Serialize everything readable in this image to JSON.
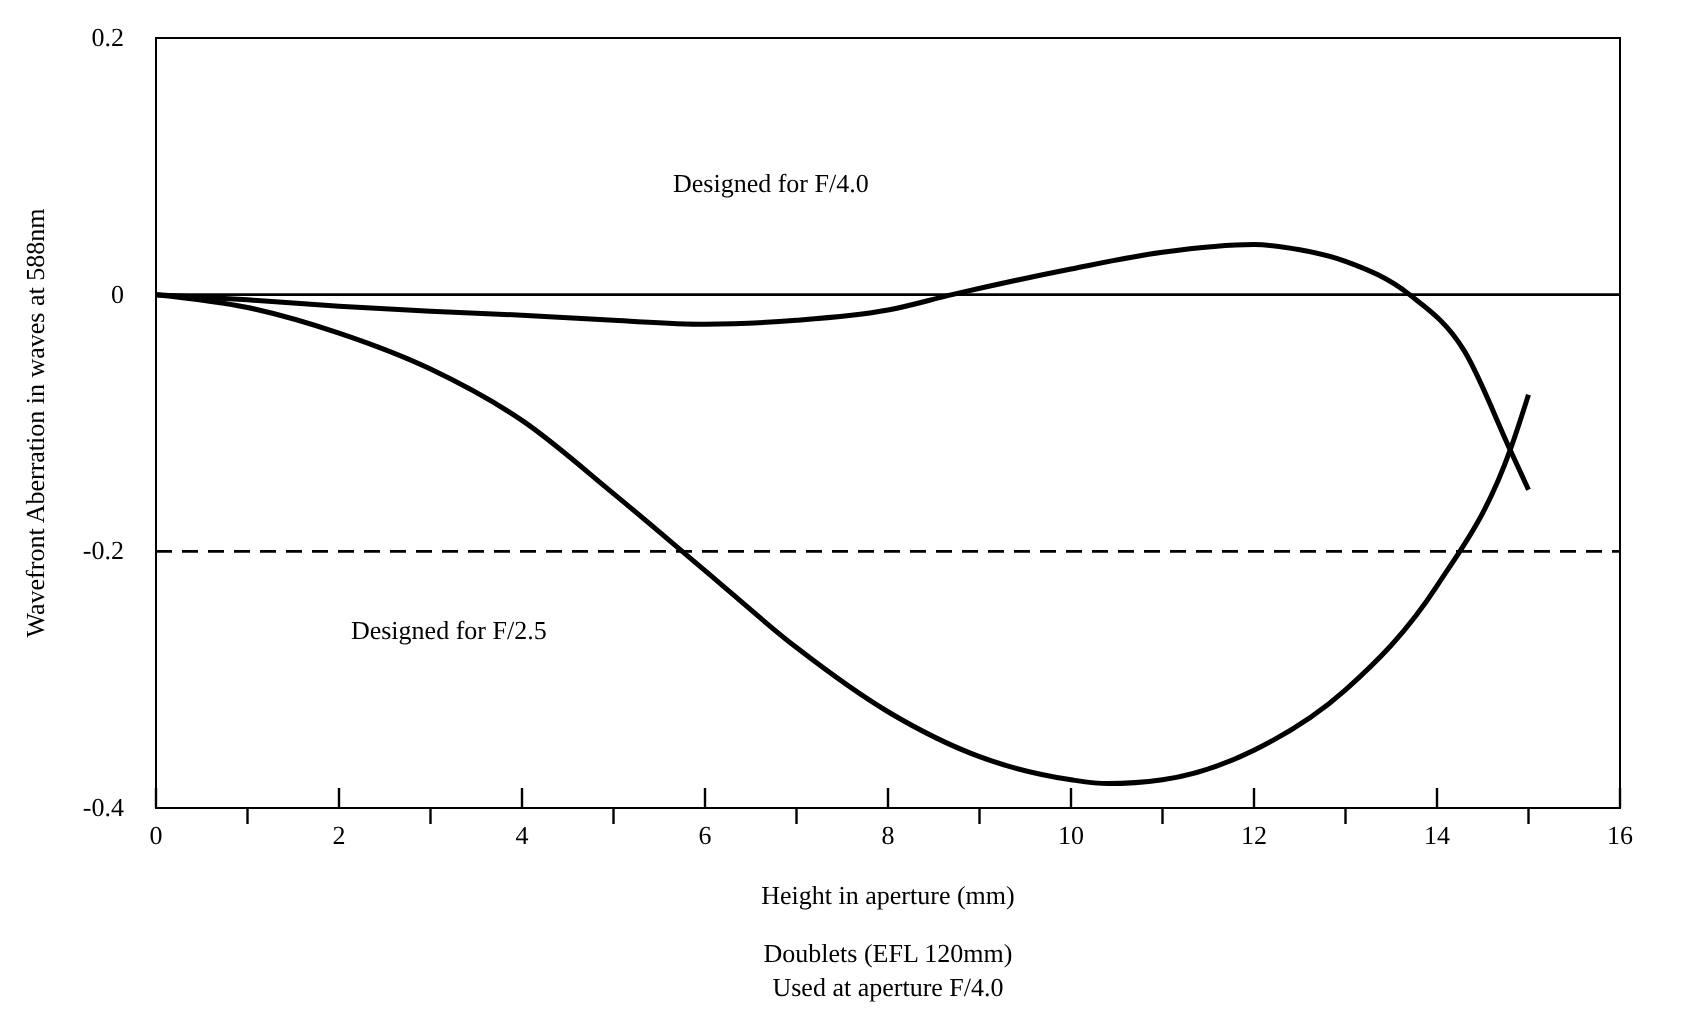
{
  "chart_data": {
    "type": "line",
    "xlabel": "Height in aperture (mm)",
    "ylabel": "Wavefront Aberration in waves at 588nm",
    "xlim": [
      0,
      16
    ],
    "ylim": [
      -0.4,
      0.2
    ],
    "xticks": [
      0,
      {
        "value": 1,
        "label": null
      },
      2,
      {
        "value": 3,
        "label": null
      },
      4,
      {
        "value": 5,
        "label": null
      },
      6,
      {
        "value": 7,
        "label": null
      },
      8,
      {
        "value": 9,
        "label": null
      },
      10,
      {
        "value": 11,
        "label": null
      },
      12,
      {
        "value": 13,
        "label": null
      },
      14,
      {
        "value": 15,
        "label": null
      },
      16
    ],
    "yticks": [
      -0.4,
      -0.2,
      0,
      0.2
    ],
    "grid": false,
    "marker": "none",
    "line_style": "solid",
    "series": [
      {
        "color": "#000000",
        "x": [
          0,
          1,
          2,
          3,
          4,
          5,
          6,
          7,
          8,
          8.7,
          10,
          11,
          12,
          12.5,
          13,
          13.7,
          14.3,
          14.8,
          15
        ],
        "values": [
          0,
          -0.004,
          -0.009,
          -0.013,
          -0.016,
          -0.02,
          -0.023,
          -0.02,
          -0.012,
          0,
          0.02,
          0.033,
          0.039,
          0.035,
          0.026,
          0,
          -0.044,
          -0.121,
          -0.152
        ]
      },
      {
        "color": "#000000",
        "x": [
          0,
          1,
          2,
          3,
          4,
          5,
          6,
          7,
          8,
          9,
          10,
          10.4,
          11,
          12,
          13,
          14,
          14.8,
          15
        ],
        "values": [
          0,
          -0.01,
          -0.03,
          -0.058,
          -0.098,
          -0.155,
          -0.215,
          -0.275,
          -0.325,
          -0.36,
          -0.378,
          -0.381,
          -0.378,
          -0.355,
          -0.308,
          -0.227,
          -0.121,
          -0.078
        ]
      }
    ],
    "ref_lines": [
      {
        "axis": "y",
        "value": 0,
        "color": "#000000",
        "line_style": "solid"
      },
      {
        "axis": "y",
        "value": -0.2,
        "color": "#000000",
        "line_style": "dashed"
      }
    ],
    "annotations": [
      "Designed for F/4.0",
      "Designed for F/2.5",
      "Doublets (EFL 120mm)",
      "Used at aperture F/4.0"
    ]
  }
}
